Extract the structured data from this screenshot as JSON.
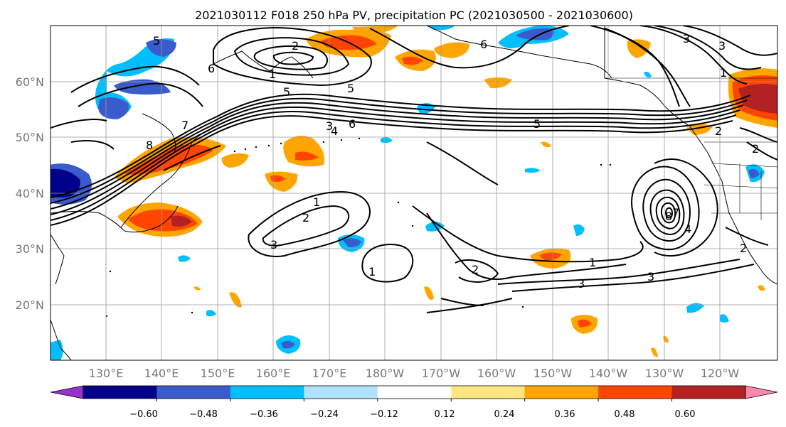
{
  "title": "2021030112 F018 250 hPa PV, precipitation PC (2021030500 - 2021030600)",
  "lat_labels": [
    "60°N",
    "50°N",
    "40°N",
    "30°N",
    "20°N"
  ],
  "lon_labels": [
    "130°E",
    "140°E",
    "150°E",
    "160°E",
    "170°E",
    "180°W",
    "170°W",
    "160°W",
    "150°W",
    "140°W",
    "130°W",
    "120°W"
  ],
  "contour_labels": [
    "5",
    "6",
    "2",
    "1",
    "5",
    "5",
    "6",
    "3",
    "2",
    "7",
    "8",
    "3",
    "1",
    "2",
    "3",
    "4",
    "5",
    "6",
    "7",
    "8",
    "2",
    "4",
    "3",
    "3",
    "2",
    "1",
    "1",
    "2",
    "1",
    "3"
  ],
  "colorbar": {
    "colors": [
      "#9932cc",
      "#00008b",
      "#3a5bcc",
      "#00bfff",
      "#b0e2ff",
      "#ffffff",
      "#ffe680",
      "#ffa500",
      "#ff4500",
      "#b22222",
      "#ff88aa"
    ],
    "tick_labels": [
      "−0.60",
      "−0.48",
      "−0.36",
      "−0.24",
      "−0.12",
      "0.12",
      "0.24",
      "0.36",
      "0.48",
      "0.60"
    ]
  }
}
